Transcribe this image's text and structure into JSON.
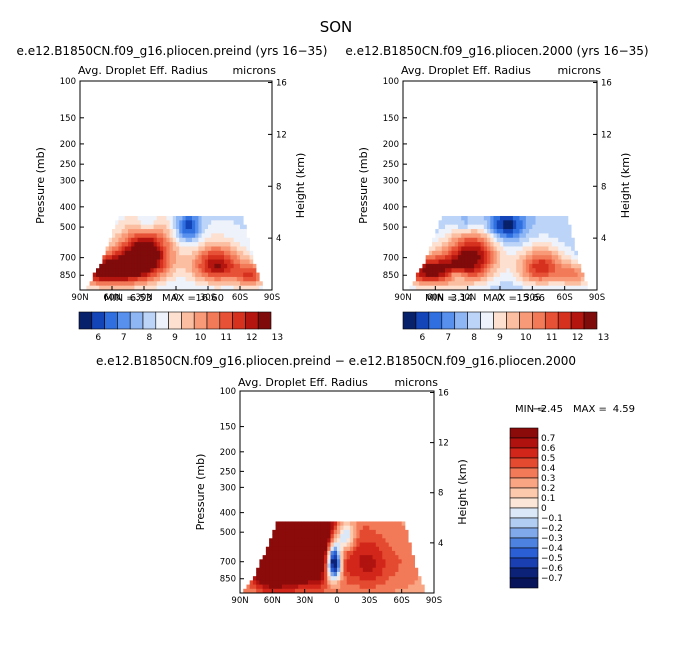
{
  "figure": {
    "season": "SON",
    "colors": {
      "background": "#ffffff",
      "frame": "#000000"
    }
  },
  "chart_data": [
    {
      "type": "heatmap",
      "title": "e.e12.B1850CN.f09_g16.pliocen.preind (yrs 16−35)",
      "subtitle": "Avg. Droplet Eff. Radius",
      "units": "microns",
      "xlabel": "",
      "ylabel": "Pressure (mb)",
      "y2label": "Height (km)",
      "x_ticks": [
        "90N",
        "60N",
        "30N",
        "0",
        "30S",
        "60S",
        "90S"
      ],
      "y_ticks": [
        "100",
        "150",
        "200",
        "250",
        "300",
        "400",
        "500",
        "700",
        "850"
      ],
      "y2_ticks": [
        "16",
        "12",
        "8",
        "4"
      ],
      "x_range": [
        90,
        -90
      ],
      "y_range": [
        100,
        1000
      ],
      "y_scale": "log",
      "min_label": "MIN =",
      "min_value": "6.53",
      "max_label": "MAX =",
      "max_value": "16.60",
      "colorbar": {
        "orientation": "horizontal",
        "labels": [
          "6",
          "7",
          "8",
          "9",
          "10",
          "11",
          "12",
          "13"
        ],
        "colors": [
          "#08216b",
          "#1445b8",
          "#2f6fe0",
          "#5890ee",
          "#8fb6f4",
          "#bcd4f8",
          "#eef2fa",
          "#fde0cf",
          "#fcbea0",
          "#f89a78",
          "#f27a58",
          "#e75237",
          "#d6301e",
          "#b4160f",
          "#800b0b"
        ]
      },
      "field": {
        "cloud_top_mb": 450,
        "cloud_edges_lat": [
          65,
          -73
        ],
        "blobs": [
          {
            "lat": 28,
            "p": 680,
            "amp": 14.5,
            "slat": 17,
            "sp": 140
          },
          {
            "lat": -38,
            "p": 760,
            "amp": 13.5,
            "slat": 16,
            "sp": 110
          },
          {
            "lat": 72,
            "p": 815,
            "amp": 12.5,
            "slat": 16,
            "sp": 90
          },
          {
            "lat": 52,
            "p": 800,
            "amp": 12.0,
            "slat": 18,
            "sp": 110
          },
          {
            "lat": -70,
            "p": 850,
            "amp": 12.0,
            "slat": 10,
            "sp": 80
          }
        ],
        "base_value": 8.6,
        "cold_spots": [
          {
            "lat": -12,
            "p": 500,
            "amp": -2.5,
            "slat": 8,
            "sp": 60
          },
          {
            "lat": 28,
            "p": 480,
            "amp": -1.5,
            "slat": 8,
            "sp": 40
          }
        ]
      }
    },
    {
      "type": "heatmap",
      "title": "e.e12.B1850CN.f09_g16.pliocen.2000 (yrs 16−35)",
      "subtitle": "Avg. Droplet Eff. Radius",
      "units": "microns",
      "xlabel": "",
      "ylabel": "Pressure (mb)",
      "y2label": "Height (km)",
      "x_ticks": [
        "90N",
        "60N",
        "30N",
        "0",
        "30S",
        "60S",
        "90S"
      ],
      "y_ticks": [
        "100",
        "150",
        "200",
        "250",
        "300",
        "400",
        "500",
        "700",
        "850"
      ],
      "y2_ticks": [
        "16",
        "12",
        "8",
        "4"
      ],
      "x_range": [
        90,
        -90
      ],
      "y_range": [
        100,
        1000
      ],
      "y_scale": "log",
      "min_label": "MIN =",
      "min_value": "3.14",
      "max_label": "MAX =",
      "max_value": "15.66",
      "colorbar": {
        "orientation": "horizontal",
        "labels": [
          "6",
          "7",
          "8",
          "9",
          "10",
          "11",
          "12",
          "13"
        ],
        "colors": [
          "#08216b",
          "#1445b8",
          "#2f6fe0",
          "#5890ee",
          "#8fb6f4",
          "#bcd4f8",
          "#eef2fa",
          "#fde0cf",
          "#fcbea0",
          "#f89a78",
          "#f27a58",
          "#e75237",
          "#d6301e",
          "#b4160f",
          "#800b0b"
        ]
      },
      "field": {
        "cloud_top_mb": 450,
        "cloud_edges_lat": [
          65,
          -73
        ],
        "blobs": [
          {
            "lat": 25,
            "p": 690,
            "amp": 13.5,
            "slat": 16,
            "sp": 140
          },
          {
            "lat": -38,
            "p": 780,
            "amp": 12.8,
            "slat": 15,
            "sp": 110
          },
          {
            "lat": 72,
            "p": 815,
            "amp": 12.0,
            "slat": 16,
            "sp": 90
          },
          {
            "lat": 52,
            "p": 800,
            "amp": 11.3,
            "slat": 18,
            "sp": 110
          },
          {
            "lat": -70,
            "p": 850,
            "amp": 11.0,
            "slat": 10,
            "sp": 80
          }
        ],
        "base_value": 8.3,
        "cold_spots": [
          {
            "lat": -5,
            "p": 490,
            "amp": -2.8,
            "slat": 12,
            "sp": 60
          },
          {
            "lat": 30,
            "p": 480,
            "amp": -1.5,
            "slat": 10,
            "sp": 40
          },
          {
            "lat": 40,
            "p": 850,
            "amp": -2.0,
            "slat": 6,
            "sp": 40
          }
        ]
      }
    },
    {
      "type": "heatmap",
      "title": "e.e12.B1850CN.f09_g16.pliocen.preind − e.e12.B1850CN.f09_g16.pliocen.2000",
      "subtitle": "Avg. Droplet Eff. Radius",
      "units": "microns",
      "xlabel": "",
      "ylabel": "Pressure (mb)",
      "y2label": "Height (km)",
      "x_ticks": [
        "90N",
        "60N",
        "30N",
        "0",
        "30S",
        "60S",
        "90S"
      ],
      "y_ticks": [
        "100",
        "150",
        "200",
        "250",
        "300",
        "400",
        "500",
        "700",
        "850"
      ],
      "y2_ticks": [
        "16",
        "12",
        "8",
        "4"
      ],
      "x_range": [
        90,
        -90
      ],
      "y_range": [
        100,
        1000
      ],
      "y_scale": "log",
      "min_label": "MIN =",
      "min_value": "−2.45",
      "max_label": "MAX =",
      "max_value": "4.59",
      "colorbar": {
        "orientation": "vertical",
        "labels": [
          "0.7",
          "0.6",
          "0.5",
          "0.4",
          "0.3",
          "0.2",
          "0.1",
          "0",
          "−0.1",
          "−0.2",
          "−0.3",
          "−0.4",
          "−0.5",
          "−0.6",
          "−0.7"
        ],
        "colors": [
          "#8b0a0a",
          "#b0130f",
          "#d2261a",
          "#e44a30",
          "#f27a58",
          "#f9a583",
          "#fcc9ad",
          "#fbe6d8",
          "#dbe8f8",
          "#b2cdf2",
          "#7fa9ea",
          "#4d82e0",
          "#2a5fd6",
          "#1a3fb0",
          "#0c2278",
          "#08145a"
        ]
      },
      "field": {
        "cloud_top_mb": 450,
        "cloud_edges_lat": [
          67,
          -73
        ],
        "blobs": [
          {
            "lat": 30,
            "p": 560,
            "amp": 1.6,
            "slat": 22,
            "sp": 220
          },
          {
            "lat": 62,
            "p": 800,
            "amp": 0.9,
            "slat": 12,
            "sp": 120
          },
          {
            "lat": -30,
            "p": 720,
            "amp": 0.6,
            "slat": 14,
            "sp": 160
          },
          {
            "lat": -62,
            "p": 700,
            "amp": 0.35,
            "slat": 12,
            "sp": 150
          }
        ],
        "base_value": 0.25,
        "cold_spots": [
          {
            "lat": 3,
            "p": 700,
            "amp": -1.4,
            "slat": 5,
            "sp": 110
          },
          {
            "lat": -8,
            "p": 520,
            "amp": -0.6,
            "slat": 6,
            "sp": 70
          }
        ]
      }
    }
  ]
}
